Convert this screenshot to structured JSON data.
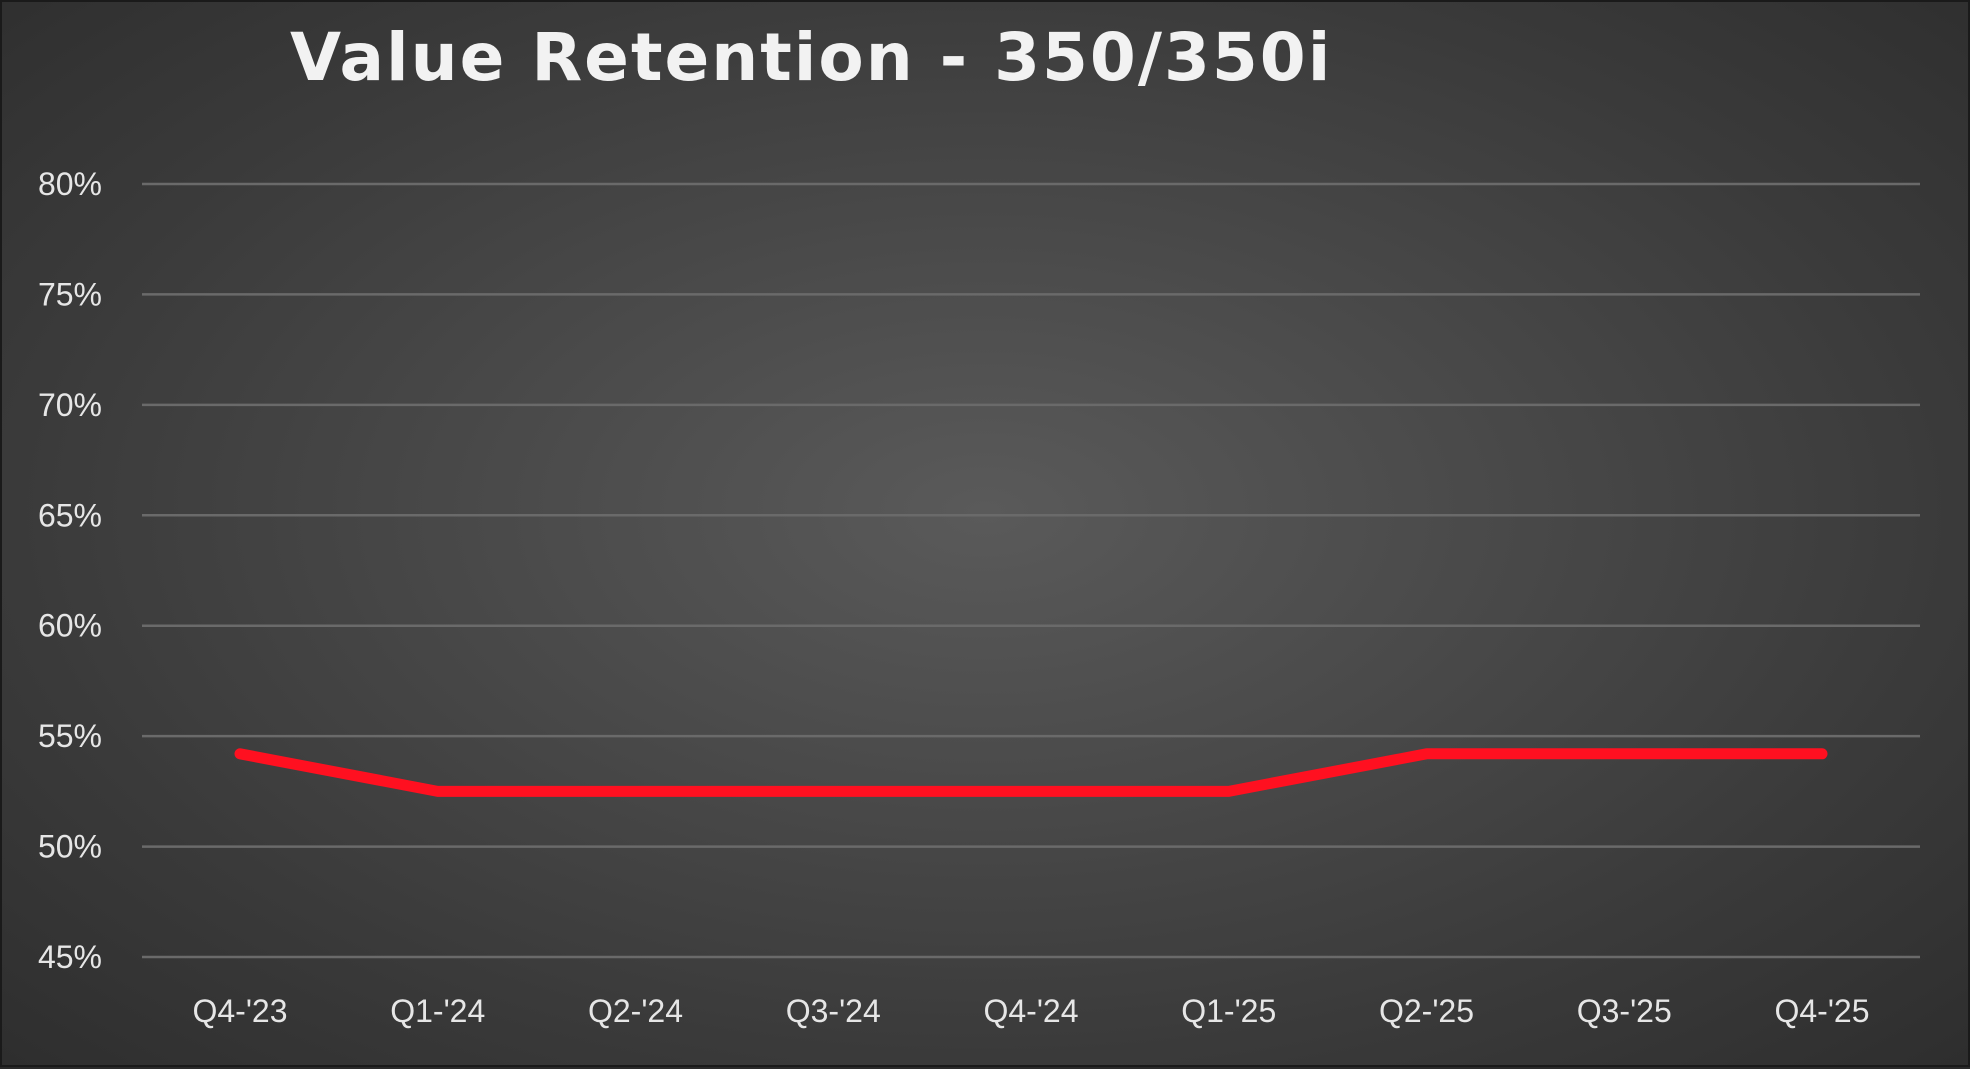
{
  "chart_data": {
    "type": "line",
    "title": "Value Retention - 350/350i",
    "categories": [
      "Q4-'23",
      "Q1-'24",
      "Q2-'24",
      "Q3-'24",
      "Q4-'24",
      "Q1-'25",
      "Q2-'25",
      "Q3-'25",
      "Q4-'25"
    ],
    "series": [
      {
        "values": [
          54.2,
          52.5,
          52.5,
          52.5,
          52.5,
          52.5,
          54.2,
          54.2,
          54.2
        ],
        "color": "#ff1020"
      }
    ],
    "ylim": [
      45,
      80
    ],
    "y_ticks": [
      {
        "value": 80,
        "label": "80%"
      },
      {
        "value": 75,
        "label": "75%"
      },
      {
        "value": 70,
        "label": "70%"
      },
      {
        "value": 65,
        "label": "65%"
      },
      {
        "value": 60,
        "label": "60%"
      },
      {
        "value": 55,
        "label": "55%"
      },
      {
        "value": 50,
        "label": "50%"
      },
      {
        "value": 45,
        "label": "45%"
      }
    ],
    "grid": true,
    "legend": "none",
    "xlabel": "",
    "ylabel": ""
  }
}
